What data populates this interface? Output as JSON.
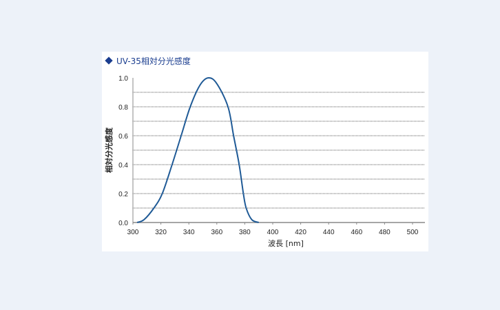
{
  "chart_data": {
    "type": "line",
    "title": "UV-35相対分光感度",
    "xlabel": "波長 [nm]",
    "ylabel": "相対分光感度",
    "xlim": [
      300,
      510
    ],
    "ylim": [
      0,
      1.0
    ],
    "x_ticks": [
      "300",
      "320",
      "340",
      "360",
      "380",
      "400",
      "420",
      "440",
      "460",
      "480",
      "500"
    ],
    "y_ticks": [
      "0.0",
      "0.2",
      "0.4",
      "0.6",
      "0.8",
      "1.0"
    ],
    "grid": "horizontal dotted every 0.1",
    "series": [
      {
        "color": "#1f5a96",
        "x": [
          303,
          308,
          315,
          321,
          328,
          334.5,
          341,
          348,
          354,
          360,
          368,
          372,
          376,
          379,
          381,
          385,
          390
        ],
        "y": [
          0,
          0.02,
          0.1,
          0.2,
          0.4,
          0.6,
          0.8,
          0.95,
          1.0,
          0.96,
          0.8,
          0.6,
          0.4,
          0.2,
          0.1,
          0.02,
          0
        ]
      }
    ]
  },
  "colors": {
    "title": "#1a3d8f",
    "background": "#edf2f9"
  }
}
